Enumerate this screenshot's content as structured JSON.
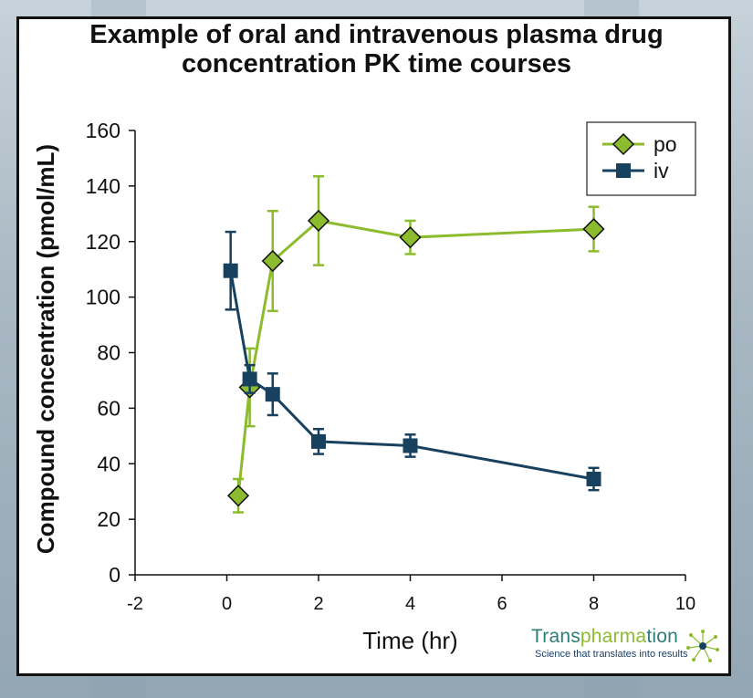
{
  "chart_data": {
    "type": "line",
    "title_lines": [
      "Example of oral and intravenous plasma drug",
      "concentration PK time courses"
    ],
    "xlabel": "Time (hr)",
    "ylabel": "Compound concentration (pmol/mL)",
    "xlim": [
      -2,
      10
    ],
    "ylim": [
      0,
      160
    ],
    "x_ticks": [
      "-2",
      "0",
      "2",
      "4",
      "6",
      "8",
      "10"
    ],
    "y_ticks": [
      "0",
      "20",
      "40",
      "60",
      "80",
      "100",
      "120",
      "140",
      "160"
    ],
    "grid": false,
    "legend_position": "top-right",
    "series": [
      {
        "name": "po",
        "color": "#8cbc2e",
        "marker": "diamond",
        "points": [
          {
            "x": 0.25,
            "y": 28.5,
            "err": 6
          },
          {
            "x": 0.5,
            "y": 67.5,
            "err": 14
          },
          {
            "x": 1,
            "y": 113,
            "err": 18
          },
          {
            "x": 2,
            "y": 127.5,
            "err": 16
          },
          {
            "x": 4,
            "y": 121.5,
            "err": 6
          },
          {
            "x": 8,
            "y": 124.5,
            "err": 8
          }
        ]
      },
      {
        "name": "iv",
        "color": "#17415f",
        "marker": "square",
        "points": [
          {
            "x": 0.083,
            "y": 109.5,
            "err": 14
          },
          {
            "x": 0.5,
            "y": 70.5,
            "err": 5
          },
          {
            "x": 1,
            "y": 65,
            "err": 7.5
          },
          {
            "x": 2,
            "y": 48,
            "err": 4.5
          },
          {
            "x": 4,
            "y": 46.5,
            "err": 4
          },
          {
            "x": 8,
            "y": 34.5,
            "err": 4
          }
        ]
      }
    ]
  },
  "logo": {
    "name_prefix": "Trans",
    "name_highlight": "pharma",
    "name_suffix": "tion",
    "tagline": "Science that translates into results"
  }
}
